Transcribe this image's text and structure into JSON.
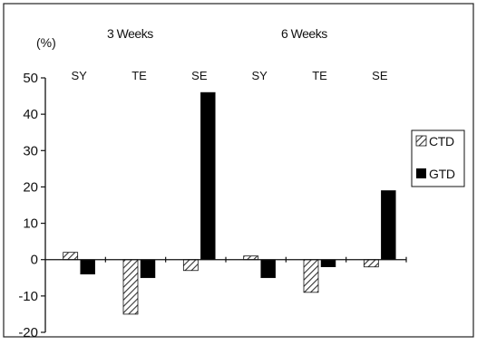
{
  "chart_data": {
    "type": "bar",
    "unit_label": "(%)",
    "group_titles": [
      "3 Weeks",
      "6 Weeks"
    ],
    "categories": [
      "SY",
      "TE",
      "SE",
      "SY",
      "TE",
      "SE"
    ],
    "series": [
      {
        "name": "CTD",
        "values": [
          2,
          -15,
          -3,
          1,
          -9,
          -2
        ],
        "color": "#555555",
        "pattern": "diagonal-hatch"
      },
      {
        "name": "GTD",
        "values": [
          -4,
          -5,
          46,
          -5,
          -2,
          19
        ],
        "color": "#000000",
        "pattern": "solid"
      }
    ],
    "ylim": [
      -20,
      50
    ],
    "yticks": [
      -20,
      -10,
      0,
      10,
      20,
      30,
      40,
      50
    ],
    "grid": false,
    "legend_position": "right"
  }
}
